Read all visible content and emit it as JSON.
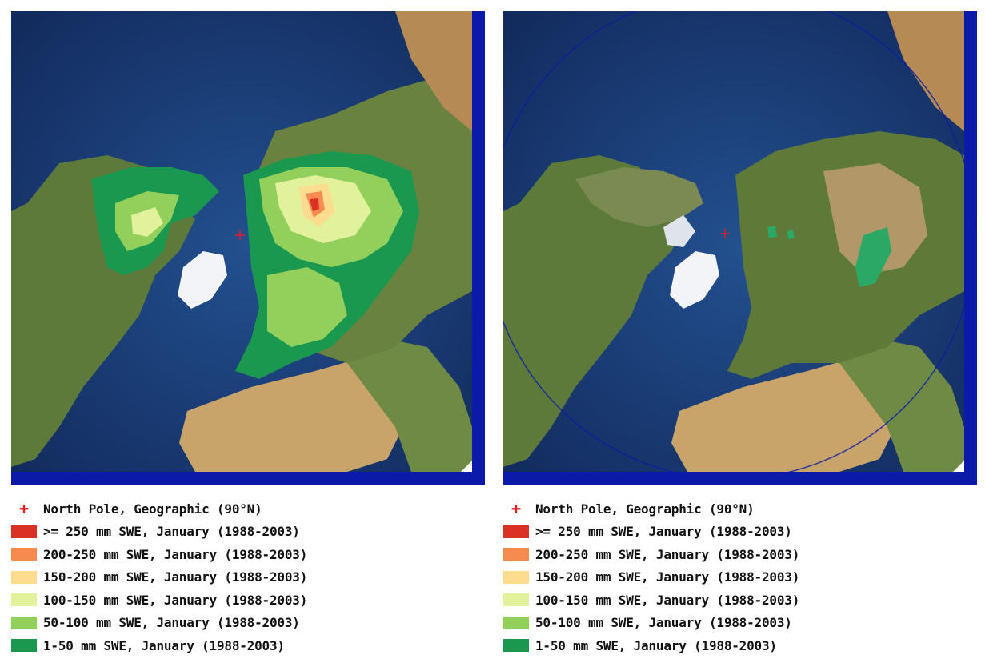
{
  "panels": [
    {
      "id": "left",
      "label_panel": "january-swe-total"
    },
    {
      "id": "right",
      "label_panel": "january-swe-change"
    }
  ],
  "legend": {
    "pole": "North Pole, Geographic (90°N)",
    "items": [
      {
        "label": ">= 250 mm SWE, January (1988-2003)",
        "color": "#d93224"
      },
      {
        "label": "200-250 mm SWE, January (1988-2003)",
        "color": "#f58b4e"
      },
      {
        "label": "150-200 mm SWE, January (1988-2003)",
        "color": "#fddc90"
      },
      {
        "label": "100-150 mm SWE, January (1988-2003)",
        "color": "#e2f19c"
      },
      {
        "label": "50-100 mm SWE, January (1988-2003)",
        "color": "#92cf5b"
      },
      {
        "label": "1-50 mm SWE, January (1988-2003)",
        "color": "#1a9850"
      }
    ]
  },
  "colors": {
    "ocean": "#1d3e7a",
    "land": "#5f7a3a",
    "desert": "#c9a46a",
    "ice": "#f2f4f7",
    "frame": "#0b1aa8",
    "pole": "#e02020"
  },
  "icons": {
    "pole_marker": "plus-icon"
  }
}
